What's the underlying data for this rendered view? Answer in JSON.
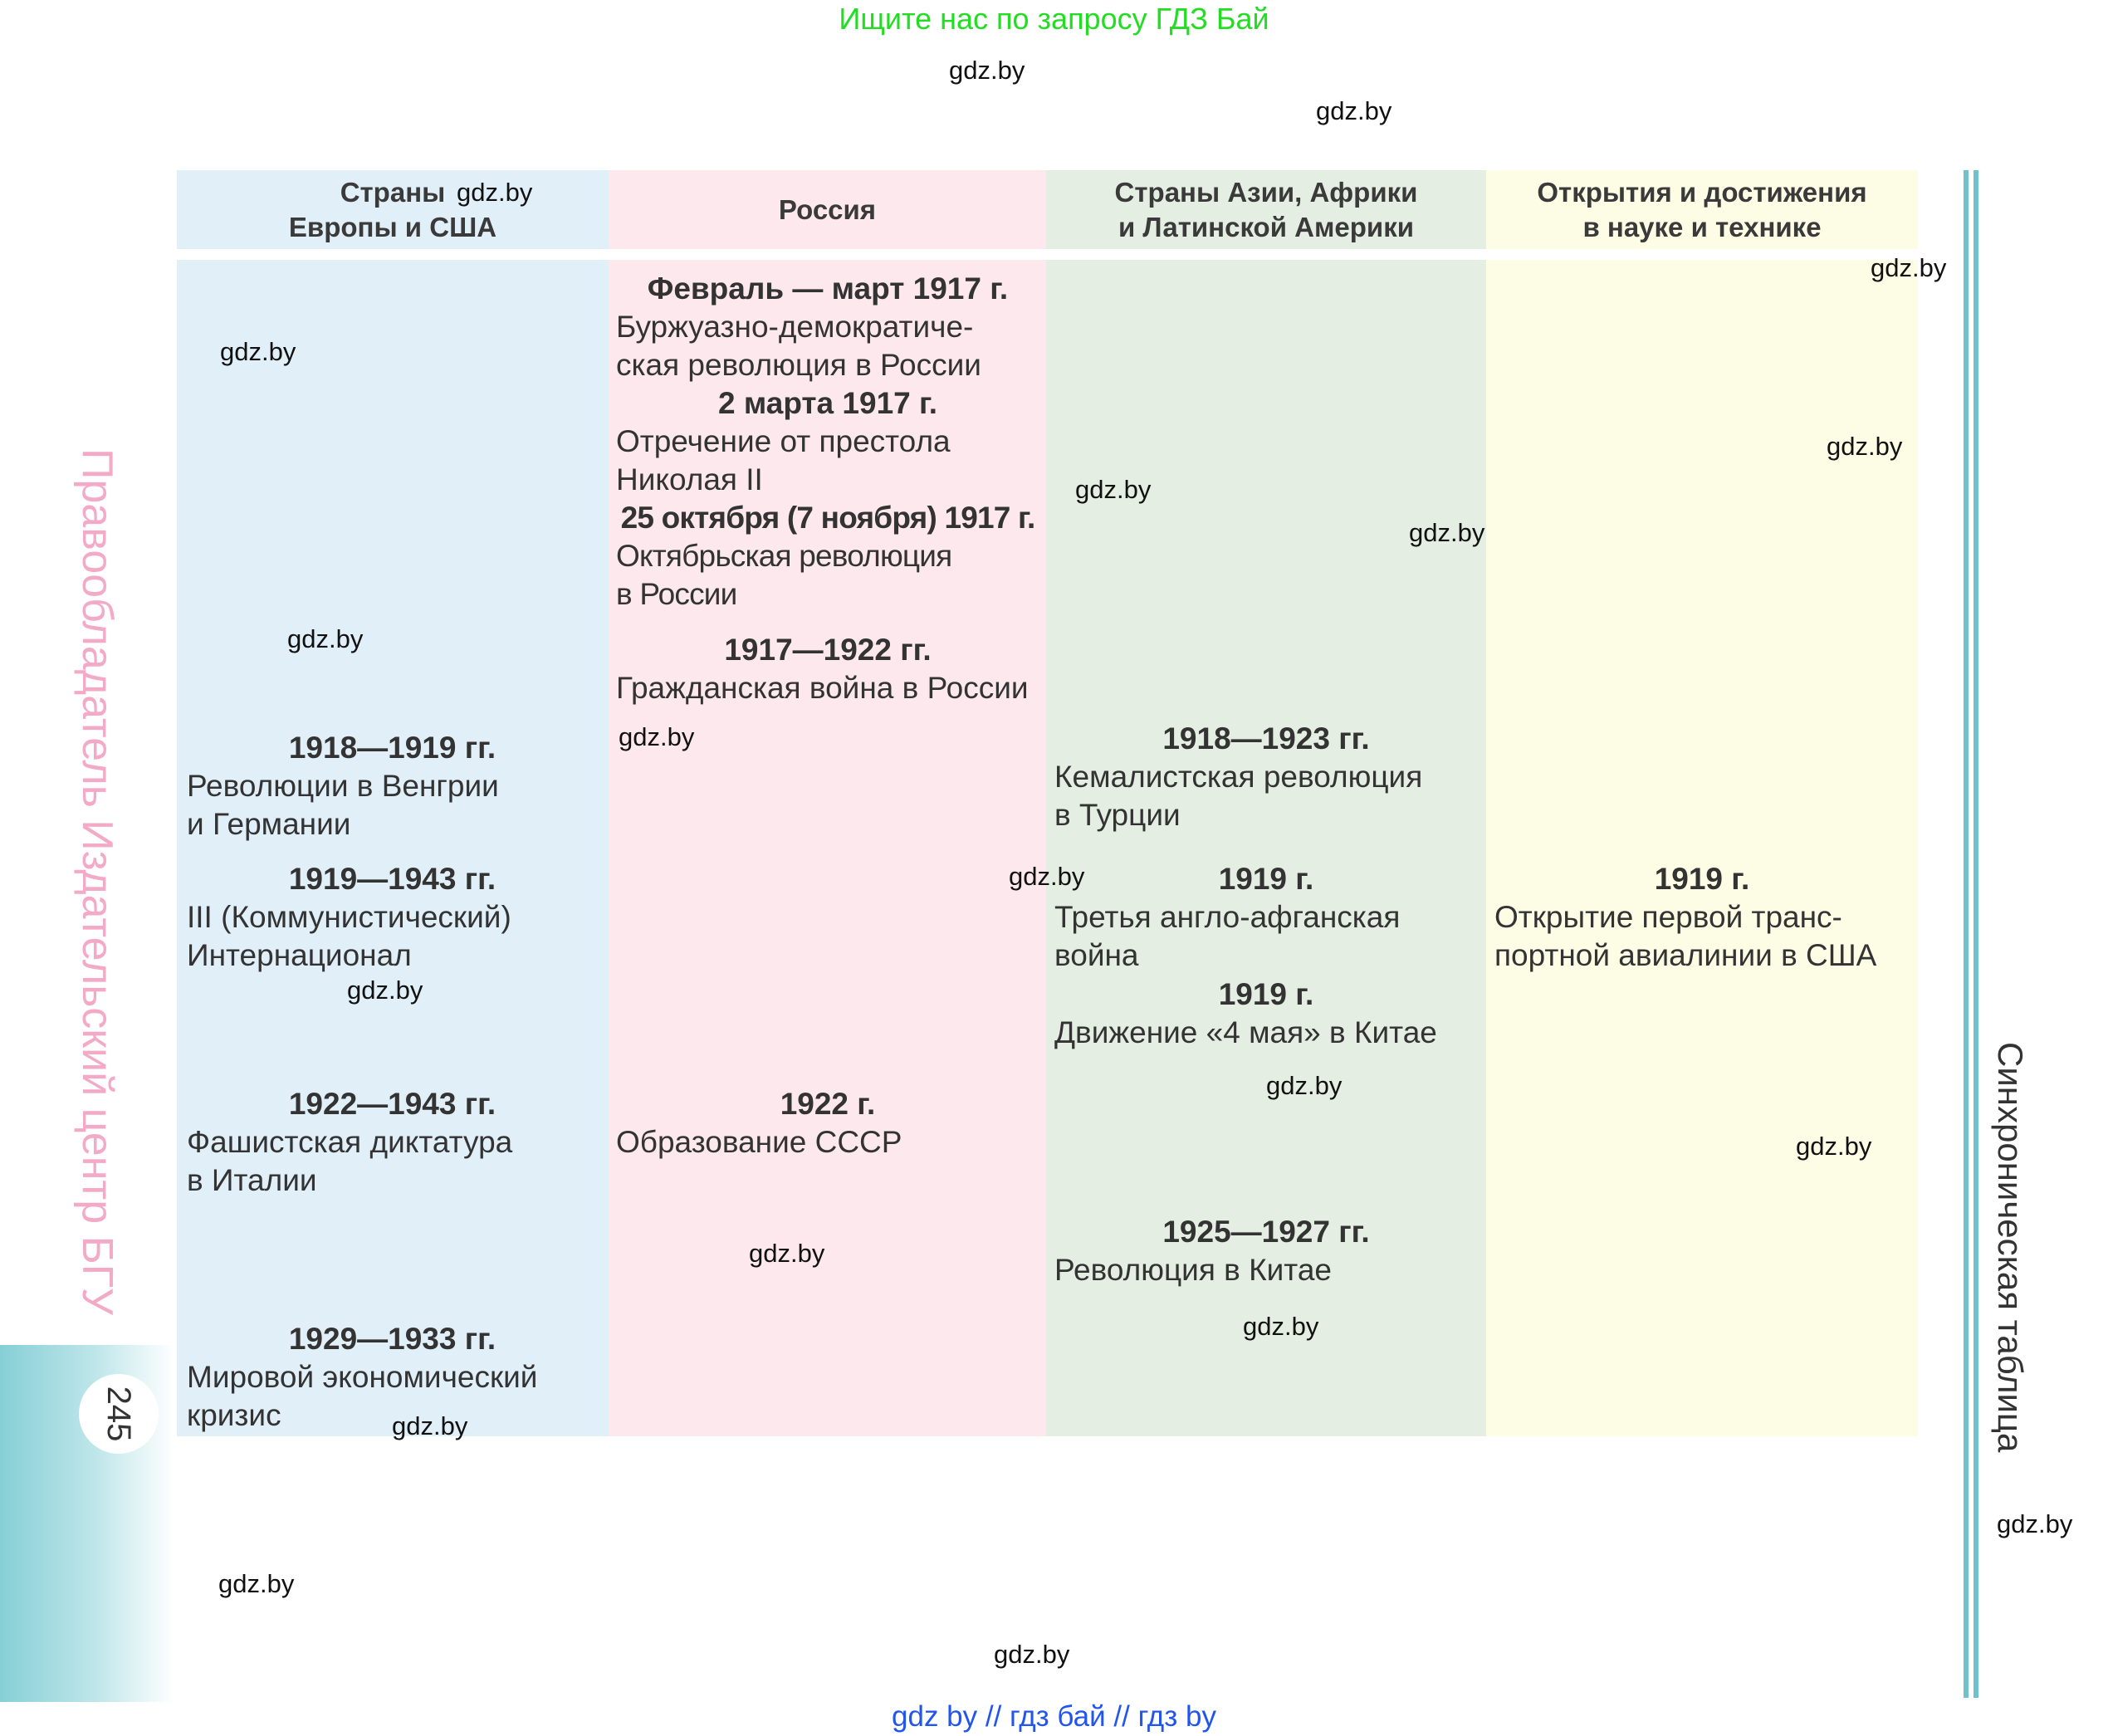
{
  "banner": "Ищите нас по запросу ГДЗ Бай",
  "watermark": "gdz.by",
  "sidebar_left": {
    "publisher": "Правообладатель Издательский центр БГУ",
    "page_number": "245"
  },
  "sidebar_right": {
    "title": "Синхроническая таблица"
  },
  "headers": {
    "europe_usa": [
      "Страны",
      "Европы и США"
    ],
    "russia": "Россия",
    "asia_africa": [
      "Страны Азии, Африки",
      "и Латинской Америки"
    ],
    "science": [
      "Открытия и достижения",
      "в науке и технике"
    ]
  },
  "europe_usa": [
    {
      "year": "1918—1919 гг.",
      "text": [
        "Революции в Венгрии",
        "и Германии"
      ]
    },
    {
      "year": "1919—1943 гг.",
      "text": [
        "III (Коммунистический)",
        "Интернационал"
      ]
    },
    {
      "year": "1922—1943 гг.",
      "text": [
        "Фашистская диктатура",
        "в Италии"
      ]
    },
    {
      "year": "1929—1933 гг.",
      "text": [
        "Мировой экономический",
        "кризис"
      ]
    }
  ],
  "russia": [
    {
      "year": "Февраль — март 1917 г.",
      "text": [
        "Буржуазно-демократиче-",
        "ская революция в России"
      ]
    },
    {
      "year": "2 марта 1917 г.",
      "text": [
        "Отречение от престола",
        "Николая II"
      ]
    },
    {
      "year": "25 октября (7 ноября) 1917 г.",
      "text": [
        "Октябрьская революция",
        "в России"
      ]
    },
    {
      "year": "1917—1922 гг.",
      "text": [
        "Гражданская война в России"
      ]
    },
    {
      "year": "1922 г.",
      "text": [
        "Образование СССР"
      ]
    }
  ],
  "asia_africa": [
    {
      "year": "1918—1923 гг.",
      "text": [
        "Кемалистская революция",
        "в Турции"
      ]
    },
    {
      "year": "1919 г.",
      "text": [
        "Третья англо-афганская",
        "война"
      ]
    },
    {
      "year": "1919 г.",
      "text": [
        "Движение «4 мая» в Китае"
      ]
    },
    {
      "year": "1925—1927 гг.",
      "text": [
        "Революция в Китае"
      ]
    }
  ],
  "science": [
    {
      "year": "1919 г.",
      "text": [
        "Открытие первой транс-",
        "портной авиалинии в США"
      ]
    }
  ],
  "bottom_links": "gdz by  //  гдз бай  //  гдз by",
  "colors": {
    "europe_bg": "#e1eff9",
    "russia_bg": "#fde8ee",
    "asia_bg": "#e5eee2",
    "science_bg": "#fdfde6",
    "accent_teal": "#6fc2cc",
    "banner_green": "#22dd22",
    "link_blue": "#2255ee"
  }
}
